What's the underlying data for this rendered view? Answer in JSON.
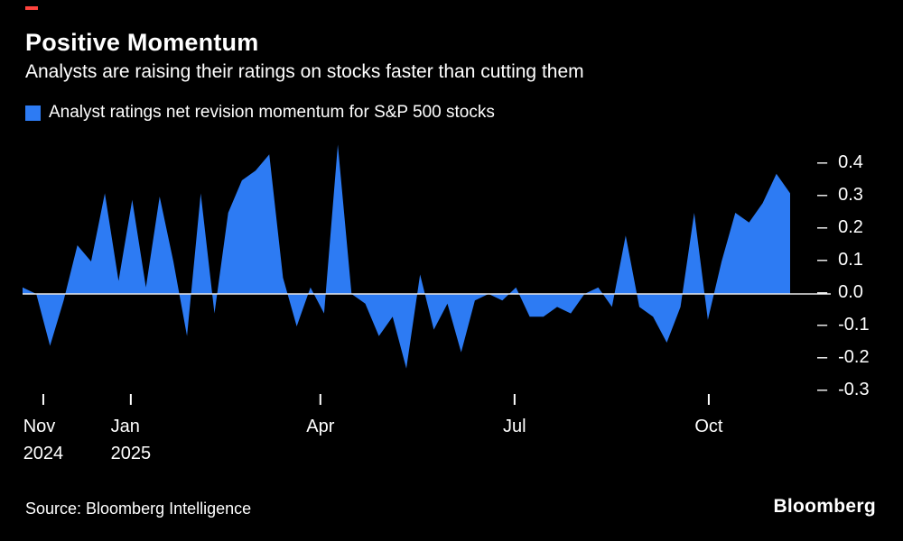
{
  "header": {
    "title": "Positive Momentum",
    "subtitle": "Analysts are raising their ratings on stocks faster than cutting them",
    "legend_label": "Analyst ratings net revision momentum for S&P 500 stocks",
    "legend_color": "#2d7bf3"
  },
  "chart_data": {
    "type": "area",
    "title": "Positive Momentum",
    "subtitle": "Analysts are raising their ratings on stocks faster than cutting them",
    "series_name": "Analyst ratings net revision momentum for S&P 500 stocks",
    "fill_color": "#2d7bf3",
    "baseline": 0,
    "grid": false,
    "legend_position": "top-left",
    "ylim": [
      -0.35,
      0.45
    ],
    "y_ticks": [
      0.4,
      0.3,
      0.2,
      0.1,
      0.0,
      -0.1,
      -0.2,
      -0.3
    ],
    "x_ticks": [
      {
        "label": "Nov",
        "sublabel": "2024",
        "pos": 0.027
      },
      {
        "label": "Jan",
        "sublabel": "2025",
        "pos": 0.141
      },
      {
        "label": "Apr",
        "sublabel": "",
        "pos": 0.388
      },
      {
        "label": "Jul",
        "sublabel": "",
        "pos": 0.641
      },
      {
        "label": "Oct",
        "sublabel": "",
        "pos": 0.894
      }
    ],
    "x_unit": "weekly, Nov 2024 - Nov 2025",
    "values": [
      0.02,
      0.0,
      -0.16,
      -0.02,
      0.15,
      0.1,
      0.31,
      0.04,
      0.29,
      0.02,
      0.3,
      0.1,
      -0.13,
      0.31,
      -0.06,
      0.25,
      0.35,
      0.38,
      0.43,
      0.05,
      -0.1,
      0.02,
      -0.06,
      0.46,
      0.0,
      -0.03,
      -0.13,
      -0.07,
      -0.23,
      0.06,
      -0.11,
      -0.03,
      -0.18,
      -0.02,
      0.0,
      -0.02,
      0.02,
      -0.07,
      -0.07,
      -0.04,
      -0.06,
      0.0,
      0.02,
      -0.04,
      0.18,
      -0.04,
      -0.07,
      -0.15,
      -0.04,
      0.25,
      -0.08,
      0.1,
      0.25,
      0.22,
      0.28,
      0.37,
      0.31
    ]
  },
  "footer": {
    "source": "Source: Bloomberg Intelligence",
    "brand": "Bloomberg"
  }
}
